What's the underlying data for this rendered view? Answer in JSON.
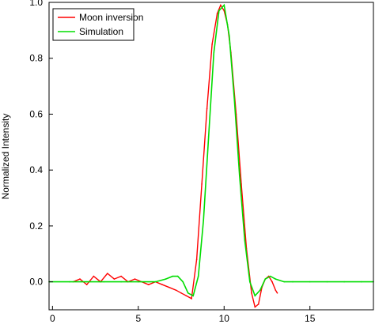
{
  "chart_data": {
    "type": "line",
    "title": "",
    "xlabel": "",
    "ylabel": "Normalized Intensity",
    "xlim": [
      -0.2,
      18.7
    ],
    "ylim": [
      -0.1,
      1.0
    ],
    "x_ticks": [
      {
        "value": 0,
        "label": "0"
      },
      {
        "value": 5,
        "label": "5"
      },
      {
        "value": 10,
        "label": "10"
      },
      {
        "value": 15,
        "label": "15"
      }
    ],
    "y_ticks": [
      {
        "value": 0.0,
        "label": "0.0"
      },
      {
        "value": 0.2,
        "label": "0.2"
      },
      {
        "value": 0.4,
        "label": "0.4"
      },
      {
        "value": 0.6,
        "label": "0.6"
      },
      {
        "value": 0.8,
        "label": "0.8"
      },
      {
        "value": 1.0,
        "label": "1.0"
      }
    ],
    "grid": false,
    "legend_position": "top-left",
    "series": [
      {
        "name": "Moon inversion",
        "color": "#ff0000",
        "x": [
          1.2,
          1.6,
          2.0,
          2.4,
          2.8,
          3.2,
          3.6,
          4.0,
          4.4,
          4.8,
          5.2,
          5.6,
          6.0,
          6.4,
          6.8,
          7.2,
          7.5,
          7.8,
          8.1,
          8.4,
          8.7,
          9.0,
          9.3,
          9.6,
          9.8,
          10.0,
          10.2,
          10.4,
          10.7,
          11.0,
          11.3,
          11.6,
          11.8,
          12.0,
          12.2,
          12.4,
          12.6,
          12.8,
          13.0,
          13.1
        ],
        "y": [
          0.0,
          0.01,
          -0.01,
          0.02,
          0.0,
          0.03,
          0.01,
          0.02,
          0.0,
          0.01,
          0.0,
          -0.01,
          0.0,
          -0.01,
          -0.02,
          -0.03,
          -0.04,
          -0.05,
          -0.06,
          0.08,
          0.35,
          0.62,
          0.85,
          0.96,
          0.99,
          0.97,
          0.92,
          0.82,
          0.6,
          0.35,
          0.12,
          -0.04,
          -0.09,
          -0.08,
          -0.02,
          0.01,
          0.02,
          0.0,
          -0.03,
          -0.04
        ]
      },
      {
        "name": "Simulation",
        "color": "#00dd00",
        "x": [
          -0.2,
          1.0,
          2.0,
          3.0,
          4.0,
          5.0,
          6.0,
          6.6,
          7.0,
          7.3,
          7.6,
          7.9,
          8.2,
          8.5,
          8.8,
          9.1,
          9.4,
          9.7,
          10.0,
          10.3,
          10.6,
          10.9,
          11.2,
          11.5,
          11.8,
          12.1,
          12.4,
          12.7,
          13.0,
          13.5,
          14.0,
          15.0,
          16.0,
          17.0,
          18.0,
          18.7
        ],
        "y": [
          0.0,
          0.0,
          0.0,
          0.0,
          0.0,
          0.0,
          0.0,
          0.01,
          0.02,
          0.02,
          0.0,
          -0.04,
          -0.05,
          0.02,
          0.22,
          0.52,
          0.82,
          0.97,
          0.99,
          0.88,
          0.65,
          0.38,
          0.15,
          0.0,
          -0.05,
          -0.03,
          0.01,
          0.02,
          0.01,
          0.0,
          0.0,
          0.0,
          0.0,
          0.0,
          0.0,
          0.0
        ]
      }
    ]
  }
}
